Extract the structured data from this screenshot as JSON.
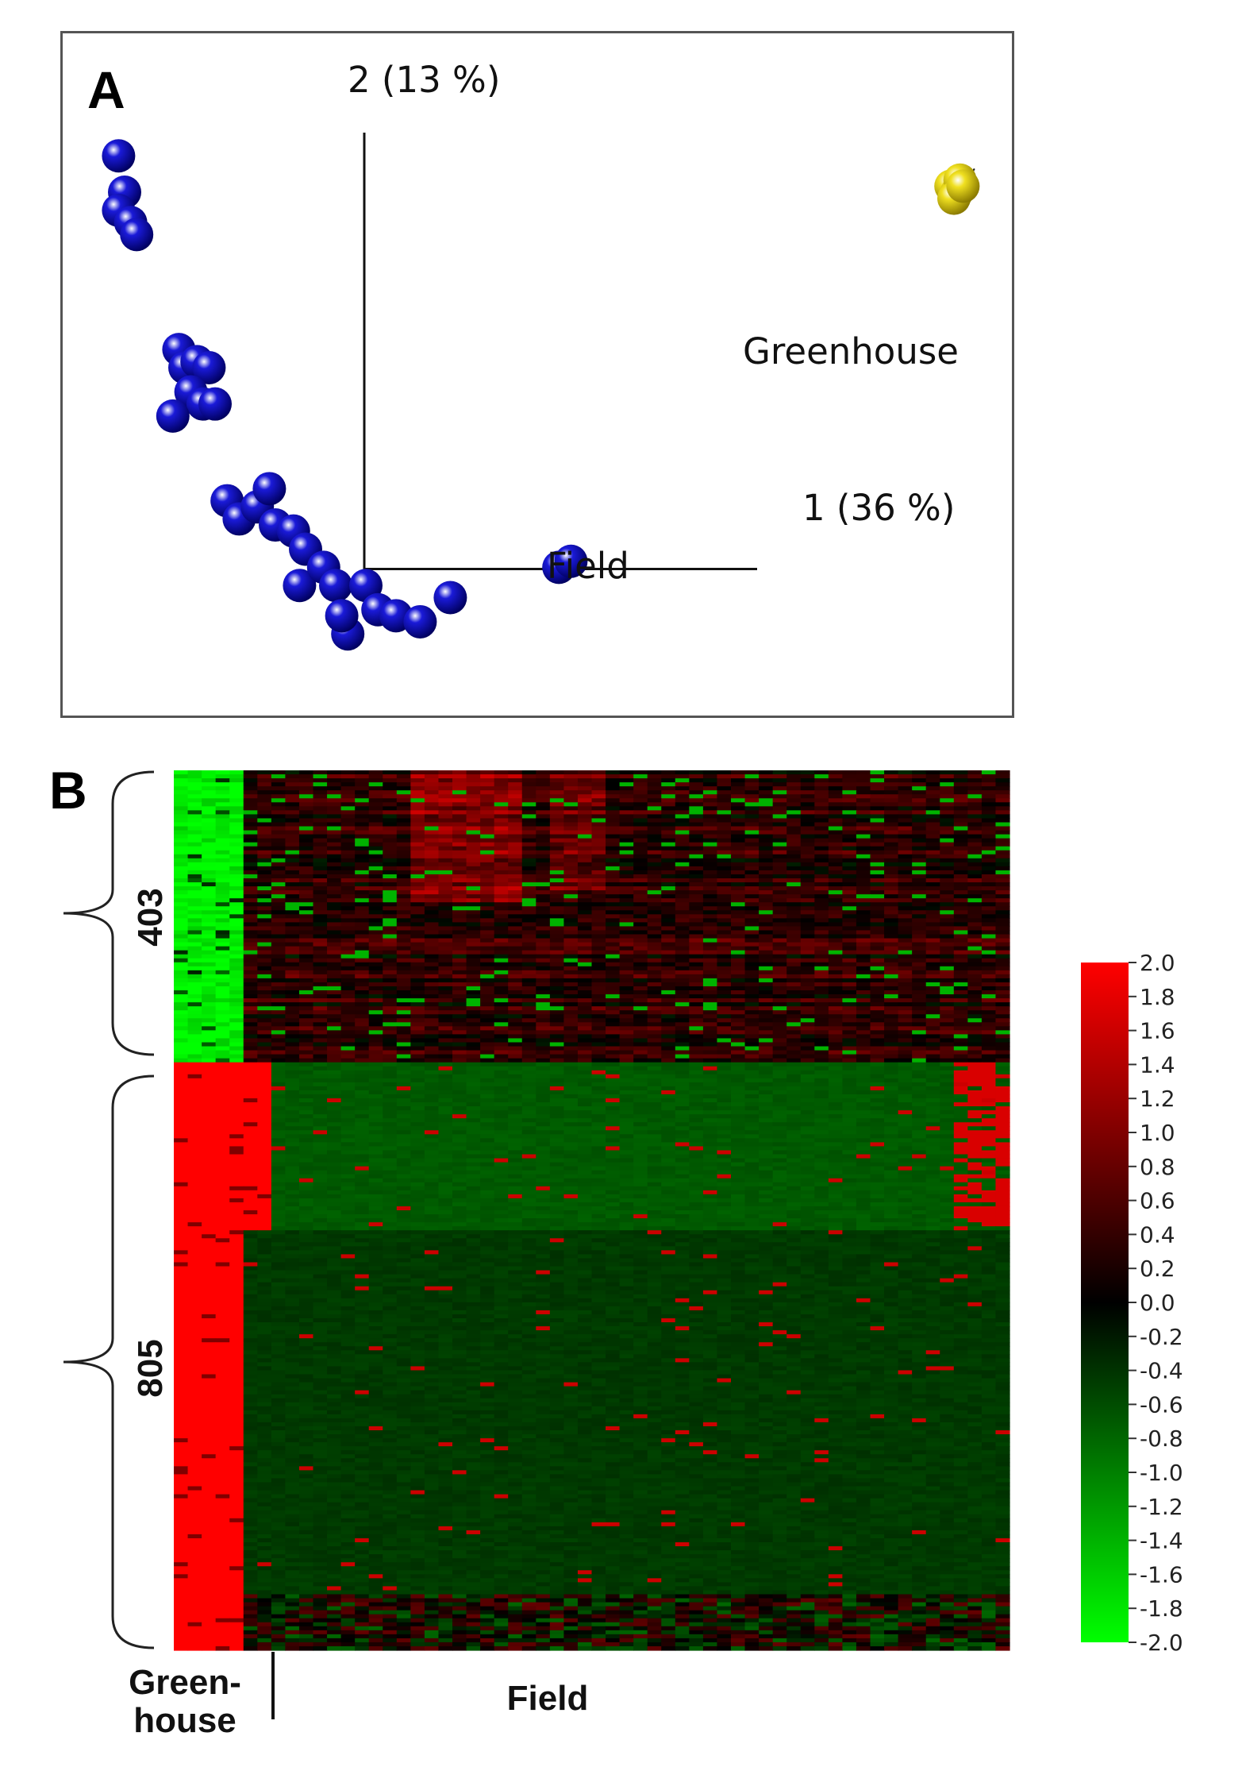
{
  "panel_a": {
    "label": "A",
    "axis1_label": "1 (36 %)",
    "axis2_label": "2 (13 %)",
    "groups": [
      {
        "name": "Greenhouse",
        "color": "#f0e020"
      },
      {
        "name": "Field",
        "color": "#1a1ad8"
      }
    ]
  },
  "panel_b": {
    "label": "B",
    "clusters": [
      {
        "label": "403",
        "rows": 403
      },
      {
        "label": "805",
        "rows": 805
      }
    ],
    "column_groups": [
      {
        "label": "Green-\nhouse"
      },
      {
        "label": "Field"
      }
    ]
  },
  "chart_data": [
    {
      "type": "scatter",
      "title": "",
      "xlabel": "1 (36 %)",
      "ylabel": "2 (13 %)",
      "series": [
        {
          "name": "Greenhouse",
          "color": "#f0e020",
          "points": [
            [
              9.2,
              6.0
            ],
            [
              9.3,
              5.9
            ],
            [
              9.35,
              6.1
            ],
            [
              9.25,
              5.8
            ],
            [
              9.4,
              6.0
            ]
          ]
        },
        {
          "name": "Field",
          "color": "#1a1ad8",
          "points": [
            [
              -4.6,
              6.5
            ],
            [
              -4.5,
              5.9
            ],
            [
              -4.6,
              5.6
            ],
            [
              -4.4,
              5.4
            ],
            [
              -4.3,
              5.2
            ],
            [
              -3.6,
              3.3
            ],
            [
              -3.5,
              3.0
            ],
            [
              -3.3,
              3.1
            ],
            [
              -3.1,
              3.0
            ],
            [
              -3.4,
              2.6
            ],
            [
              -3.2,
              2.4
            ],
            [
              -3.0,
              2.4
            ],
            [
              -3.7,
              2.2
            ],
            [
              -2.8,
              0.8
            ],
            [
              -2.6,
              0.5
            ],
            [
              -2.3,
              0.7
            ],
            [
              -2.1,
              1.0
            ],
            [
              -2.0,
              0.4
            ],
            [
              -1.7,
              0.3
            ],
            [
              -1.5,
              0.0
            ],
            [
              -1.6,
              -0.6
            ],
            [
              -1.2,
              -0.3
            ],
            [
              -1.0,
              -0.6
            ],
            [
              -0.8,
              -1.4
            ],
            [
              -0.9,
              -1.1
            ],
            [
              -0.5,
              -0.6
            ],
            [
              -0.3,
              -1.0
            ],
            [
              0.0,
              -1.1
            ],
            [
              0.4,
              -1.2
            ],
            [
              0.9,
              -0.8
            ],
            [
              2.7,
              -0.3
            ],
            [
              2.9,
              -0.2
            ]
          ]
        }
      ],
      "xlim": [
        -5,
        10
      ],
      "ylim": [
        -2.5,
        8
      ]
    },
    {
      "type": "heatmap",
      "title": "",
      "row_clusters": [
        {
          "label": "403",
          "rows": 403
        },
        {
          "label": "805",
          "rows": 805
        }
      ],
      "column_groups": [
        "Green-house",
        "Field"
      ],
      "colorscale": {
        "min": -2.0,
        "max": 2.0,
        "colors": [
          "#00ff00",
          "#000000",
          "#ff0000"
        ],
        "ticks": [
          "2.0",
          "1.8",
          "1.6",
          "1.4",
          "1.2",
          "1.0",
          "0.8",
          "0.6",
          "0.4",
          "0.2",
          "0.0",
          "-0.2",
          "-0.4",
          "-0.6",
          "-0.8",
          "-1.0",
          "-1.2",
          "-1.4",
          "-1.6",
          "-1.8",
          "-2.0"
        ]
      }
    }
  ]
}
